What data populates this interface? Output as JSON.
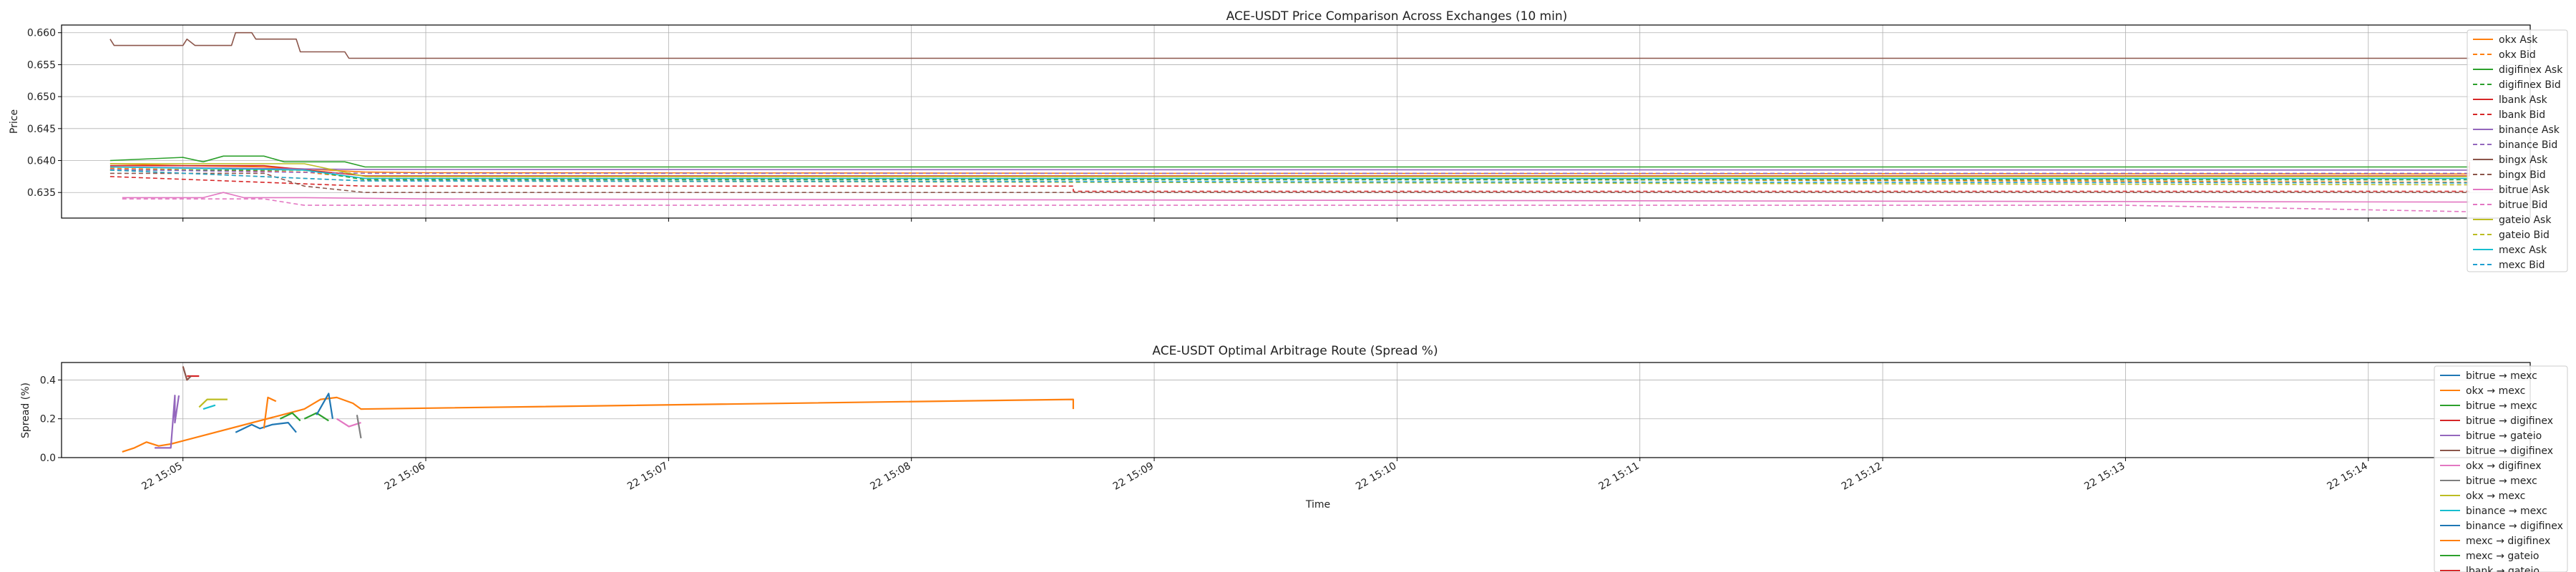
{
  "chart_data": [
    {
      "type": "line",
      "title": "ACE-USDT Price Comparison Across Exchanges (10 min)",
      "xlabel": "",
      "ylabel": "Price",
      "ylim": [
        0.631,
        0.6612
      ],
      "yticks": [
        0.635,
        0.64,
        0.645,
        0.65,
        0.655,
        0.66
      ],
      "ytick_labels": [
        "0.635",
        "0.640",
        "0.645",
        "0.650",
        "0.655",
        "0.660"
      ],
      "xlim": [
        "2024-01-22 15:04:30",
        "2024-01-22 15:14:40"
      ],
      "xticks": [
        "2024-01-22 15:05:00",
        "2024-01-22 15:06:00",
        "2024-01-22 15:07:00",
        "2024-01-22 15:08:00",
        "2024-01-22 15:09:00",
        "2024-01-22 15:10:00",
        "2024-01-22 15:11:00",
        "2024-01-22 15:12:00",
        "2024-01-22 15:13:00",
        "2024-01-22 15:14:00"
      ],
      "grid": true,
      "legend_position": "upper-right",
      "series": [
        {
          "name": "okx Ask",
          "color": "#ff7f0e",
          "dash": false,
          "points": [
            [
              "2024-01-22 15:04:42",
              0.6395
            ],
            [
              "2024-01-22 15:05:00",
              0.6392
            ],
            [
              "2024-01-22 15:05:20",
              0.639
            ],
            [
              "2024-01-22 15:05:45",
              0.6382
            ],
            [
              "2024-01-22 15:06:00",
              0.6381
            ],
            [
              "2024-01-22 15:09:00",
              0.638
            ],
            [
              "2024-01-22 15:14:25",
              0.6379
            ]
          ]
        },
        {
          "name": "okx Bid",
          "color": "#ff7f0e",
          "dash": true,
          "points": [
            [
              "2024-01-22 15:04:42",
              0.6388
            ],
            [
              "2024-01-22 15:05:30",
              0.6382
            ],
            [
              "2024-01-22 15:05:45",
              0.6372
            ],
            [
              "2024-01-22 15:09:00",
              0.6372
            ],
            [
              "2024-01-22 15:14:25",
              0.6366
            ]
          ]
        },
        {
          "name": "digifinex Ask",
          "color": "#2ca02c",
          "dash": false,
          "points": [
            [
              "2024-01-22 15:04:42",
              0.64
            ],
            [
              "2024-01-22 15:05:00",
              0.6405
            ],
            [
              "2024-01-22 15:05:05",
              0.6398
            ],
            [
              "2024-01-22 15:05:10",
              0.6407
            ],
            [
              "2024-01-22 15:05:20",
              0.6407
            ],
            [
              "2024-01-22 15:05:25",
              0.6398
            ],
            [
              "2024-01-22 15:05:40",
              0.6398
            ],
            [
              "2024-01-22 15:05:45",
              0.639
            ],
            [
              "2024-01-22 15:14:25",
              0.639
            ]
          ]
        },
        {
          "name": "digifinex Bid",
          "color": "#2ca02c",
          "dash": true,
          "points": [
            [
              "2024-01-22 15:04:42",
              0.6385
            ],
            [
              "2024-01-22 15:05:30",
              0.6385
            ],
            [
              "2024-01-22 15:05:45",
              0.637
            ],
            [
              "2024-01-22 15:14:25",
              0.637
            ]
          ]
        },
        {
          "name": "lbank Ask",
          "color": "#d62728",
          "dash": false,
          "points": [
            [
              "2024-01-22 15:04:42",
              0.6392
            ],
            [
              "2024-01-22 15:05:20",
              0.6392
            ],
            [
              "2024-01-22 15:05:45",
              0.6376
            ],
            [
              "2024-01-22 15:08:40",
              0.6376
            ],
            [
              "2024-01-22 15:14:25",
              0.6376
            ],
            [
              "2024-01-22 15:14:25",
              0.6398
            ]
          ]
        },
        {
          "name": "lbank Bid",
          "color": "#d62728",
          "dash": true,
          "points": [
            [
              "2024-01-22 15:04:42",
              0.6375
            ],
            [
              "2024-01-22 15:05:45",
              0.636
            ],
            [
              "2024-01-22 15:08:40",
              0.636
            ],
            [
              "2024-01-22 15:08:40",
              0.6352
            ],
            [
              "2024-01-22 15:14:25",
              0.6352
            ]
          ]
        },
        {
          "name": "binance Ask",
          "color": "#9467bd",
          "dash": false,
          "points": [
            [
              "2024-01-22 15:04:42",
              0.639
            ],
            [
              "2024-01-22 15:05:45",
              0.6386
            ],
            [
              "2024-01-22 15:14:25",
              0.6385
            ]
          ]
        },
        {
          "name": "binance Bid",
          "color": "#9467bd",
          "dash": true,
          "points": [
            [
              "2024-01-22 15:04:42",
              0.6386
            ],
            [
              "2024-01-22 15:05:45",
              0.638
            ],
            [
              "2024-01-22 15:14:25",
              0.638
            ]
          ]
        },
        {
          "name": "bingx Ask",
          "color": "#8c564b",
          "dash": false,
          "points": [
            [
              "2024-01-22 15:04:42",
              0.659
            ],
            [
              "2024-01-22 15:04:43",
              0.658
            ],
            [
              "2024-01-22 15:05:00",
              0.658
            ],
            [
              "2024-01-22 15:05:01",
              0.659
            ],
            [
              "2024-01-22 15:05:03",
              0.658
            ],
            [
              "2024-01-22 15:05:12",
              0.658
            ],
            [
              "2024-01-22 15:05:13",
              0.66
            ],
            [
              "2024-01-22 15:05:17",
              0.66
            ],
            [
              "2024-01-22 15:05:18",
              0.659
            ],
            [
              "2024-01-22 15:05:28",
              0.659
            ],
            [
              "2024-01-22 15:05:29",
              0.657
            ],
            [
              "2024-01-22 15:05:40",
              0.657
            ],
            [
              "2024-01-22 15:05:41",
              0.656
            ],
            [
              "2024-01-22 15:14:25",
              0.656
            ]
          ]
        },
        {
          "name": "bingx Bid",
          "color": "#8c564b",
          "dash": true,
          "points": [
            [
              "2024-01-22 15:04:42",
              0.638
            ],
            [
              "2024-01-22 15:05:20",
              0.638
            ],
            [
              "2024-01-22 15:05:30",
              0.636
            ],
            [
              "2024-01-22 15:05:45",
              0.635
            ],
            [
              "2024-01-22 15:14:25",
              0.635
            ]
          ]
        },
        {
          "name": "bitrue Ask",
          "color": "#e377c2",
          "dash": false,
          "points": [
            [
              "2024-01-22 15:04:45",
              0.6342
            ],
            [
              "2024-01-22 15:05:05",
              0.6342
            ],
            [
              "2024-01-22 15:05:10",
              0.635
            ],
            [
              "2024-01-22 15:05:15",
              0.6342
            ],
            [
              "2024-01-22 15:05:30",
              0.6342
            ],
            [
              "2024-01-22 15:06:00",
              0.634
            ],
            [
              "2024-01-22 15:14:25",
              0.6335
            ]
          ]
        },
        {
          "name": "bitrue Bid",
          "color": "#e377c2",
          "dash": true,
          "points": [
            [
              "2024-01-22 15:04:45",
              0.634
            ],
            [
              "2024-01-22 15:05:20",
              0.634
            ],
            [
              "2024-01-22 15:05:30",
              0.633
            ],
            [
              "2024-01-22 15:13:00",
              0.633
            ],
            [
              "2024-01-22 15:14:25",
              0.632
            ]
          ]
        },
        {
          "name": "gateio Ask",
          "color": "#bcbd22",
          "dash": false,
          "points": [
            [
              "2024-01-22 15:04:42",
              0.6395
            ],
            [
              "2024-01-22 15:05:30",
              0.6395
            ],
            [
              "2024-01-22 15:05:45",
              0.6375
            ],
            [
              "2024-01-22 15:14:25",
              0.6375
            ]
          ]
        },
        {
          "name": "gateio Bid",
          "color": "#bcbd22",
          "dash": true,
          "points": [
            [
              "2024-01-22 15:04:42",
              0.6385
            ],
            [
              "2024-01-22 15:05:45",
              0.6368
            ],
            [
              "2024-01-22 15:14:25",
              0.6362
            ]
          ]
        },
        {
          "name": "mexc Ask",
          "color": "#17becf",
          "dash": false,
          "points": [
            [
              "2024-01-22 15:04:42",
              0.639
            ],
            [
              "2024-01-22 15:05:30",
              0.6385
            ],
            [
              "2024-01-22 15:05:45",
              0.6372
            ],
            [
              "2024-01-22 15:14:25",
              0.6372
            ]
          ]
        },
        {
          "name": "mexc Bid",
          "color": "#1f9fd0",
          "dash": true,
          "points": [
            [
              "2024-01-22 15:04:42",
              0.6385
            ],
            [
              "2024-01-22 15:05:45",
              0.6368
            ],
            [
              "2024-01-22 15:14:25",
              0.6365
            ]
          ]
        }
      ]
    },
    {
      "type": "line",
      "title": "ACE-USDT Optimal Arbitrage Route (Spread %)",
      "xlabel": "Time",
      "ylabel": "Spread (%)",
      "ylim": [
        0.0,
        0.49
      ],
      "yticks": [
        0.0,
        0.2,
        0.4
      ],
      "ytick_labels": [
        "0.0",
        "0.2",
        "0.4"
      ],
      "xlim": [
        "2024-01-22 15:04:30",
        "2024-01-22 15:14:40"
      ],
      "xticks": [
        "2024-01-22 15:05:00",
        "2024-01-22 15:06:00",
        "2024-01-22 15:07:00",
        "2024-01-22 15:08:00",
        "2024-01-22 15:09:00",
        "2024-01-22 15:10:00",
        "2024-01-22 15:11:00",
        "2024-01-22 15:12:00",
        "2024-01-22 15:13:00",
        "2024-01-22 15:14:00"
      ],
      "xtick_labels": [
        "22 15:05",
        "22 15:06",
        "22 15:07",
        "22 15:08",
        "22 15:09",
        "22 15:10",
        "22 15:11",
        "22 15:12",
        "22 15:13",
        "22 15:14"
      ],
      "grid": true,
      "legend_position": "right",
      "series": [
        {
          "name": "bitrue → mexc",
          "color": "#1f77b4",
          "points": [
            [
              "2024-01-22 15:05:13",
              0.13
            ],
            [
              "2024-01-22 15:05:17",
              0.17
            ],
            [
              "2024-01-22 15:05:19",
              0.15
            ],
            [
              "2024-01-22 15:05:22",
              0.17
            ],
            [
              "2024-01-22 15:05:26",
              0.18
            ],
            [
              "2024-01-22 15:05:28",
              0.13
            ]
          ]
        },
        {
          "name": "okx → mexc",
          "color": "#ff7f0e",
          "points": [
            [
              "2024-01-22 15:04:45",
              0.03
            ],
            [
              "2024-01-22 15:04:48",
              0.05
            ],
            [
              "2024-01-22 15:04:51",
              0.08
            ],
            [
              "2024-01-22 15:04:54",
              0.06
            ],
            [
              "2024-01-22 15:04:57",
              0.07
            ],
            [
              "2024-01-22 15:05:30",
              0.25
            ],
            [
              "2024-01-22 15:05:34",
              0.3
            ],
            [
              "2024-01-22 15:05:38",
              0.31
            ],
            [
              "2024-01-22 15:05:42",
              0.28
            ],
            [
              "2024-01-22 15:05:44",
              0.25
            ],
            [
              "2024-01-22 15:08:40",
              0.3
            ],
            [
              "2024-01-22 15:08:40",
              0.25
            ]
          ]
        },
        {
          "name": "bitrue → mexc",
          "color": "#2ca02c",
          "points": [
            [
              "2024-01-22 15:05:30",
              0.2
            ],
            [
              "2024-01-22 15:05:33",
              0.23
            ],
            [
              "2024-01-22 15:05:36",
              0.19
            ]
          ]
        },
        {
          "name": "bitrue → digifinex",
          "color": "#d62728",
          "points": [
            [
              "2024-01-22 15:05:01",
              0.42
            ],
            [
              "2024-01-22 15:05:04",
              0.42
            ]
          ]
        },
        {
          "name": "bitrue → gateio",
          "color": "#9467bd",
          "points": [
            [
              "2024-01-22 15:04:53",
              0.05
            ],
            [
              "2024-01-22 15:04:57",
              0.05
            ],
            [
              "2024-01-22 15:04:58",
              0.32
            ],
            [
              "2024-01-22 15:04:58",
              0.18
            ],
            [
              "2024-01-22 15:04:59",
              0.32
            ]
          ]
        },
        {
          "name": "bitrue → digifinex",
          "color": "#8c564b",
          "points": [
            [
              "2024-01-22 15:05:00",
              0.47
            ],
            [
              "2024-01-22 15:05:01",
              0.4
            ],
            [
              "2024-01-22 15:05:02",
              0.42
            ]
          ]
        },
        {
          "name": "okx → digifinex",
          "color": "#e377c2",
          "points": [
            [
              "2024-01-22 15:05:38",
              0.2
            ],
            [
              "2024-01-22 15:05:41",
              0.16
            ],
            [
              "2024-01-22 15:05:44",
              0.18
            ]
          ]
        },
        {
          "name": "bitrue → mexc",
          "color": "#7f7f7f",
          "points": [
            [
              "2024-01-22 15:05:43",
              0.22
            ],
            [
              "2024-01-22 15:05:44",
              0.1
            ]
          ]
        },
        {
          "name": "okx → mexc",
          "color": "#bcbd22",
          "points": [
            [
              "2024-01-22 15:05:04",
              0.26
            ],
            [
              "2024-01-22 15:05:06",
              0.3
            ],
            [
              "2024-01-22 15:05:11",
              0.3
            ]
          ]
        },
        {
          "name": "binance → mexc",
          "color": "#17becf",
          "points": [
            [
              "2024-01-22 15:05:05",
              0.25
            ],
            [
              "2024-01-22 15:05:08",
              0.27
            ]
          ]
        },
        {
          "name": "binance → digifinex",
          "color": "#1f77b4",
          "points": [
            [
              "2024-01-22 15:05:33",
              0.22
            ],
            [
              "2024-01-22 15:05:36",
              0.33
            ],
            [
              "2024-01-22 15:05:37",
              0.2
            ]
          ]
        },
        {
          "name": "mexc → digifinex",
          "color": "#ff7f0e",
          "points": [
            [
              "2024-01-22 15:05:20",
              0.15
            ],
            [
              "2024-01-22 15:05:21",
              0.31
            ],
            [
              "2024-01-22 15:05:23",
              0.29
            ]
          ]
        },
        {
          "name": "mexc → gateio",
          "color": "#2ca02c",
          "points": [
            [
              "2024-01-22 15:05:24",
              0.2
            ],
            [
              "2024-01-22 15:05:27",
              0.23
            ],
            [
              "2024-01-22 15:05:29",
              0.19
            ]
          ]
        },
        {
          "name": "lbank → gateio",
          "color": "#d62728",
          "points": []
        }
      ]
    }
  ]
}
